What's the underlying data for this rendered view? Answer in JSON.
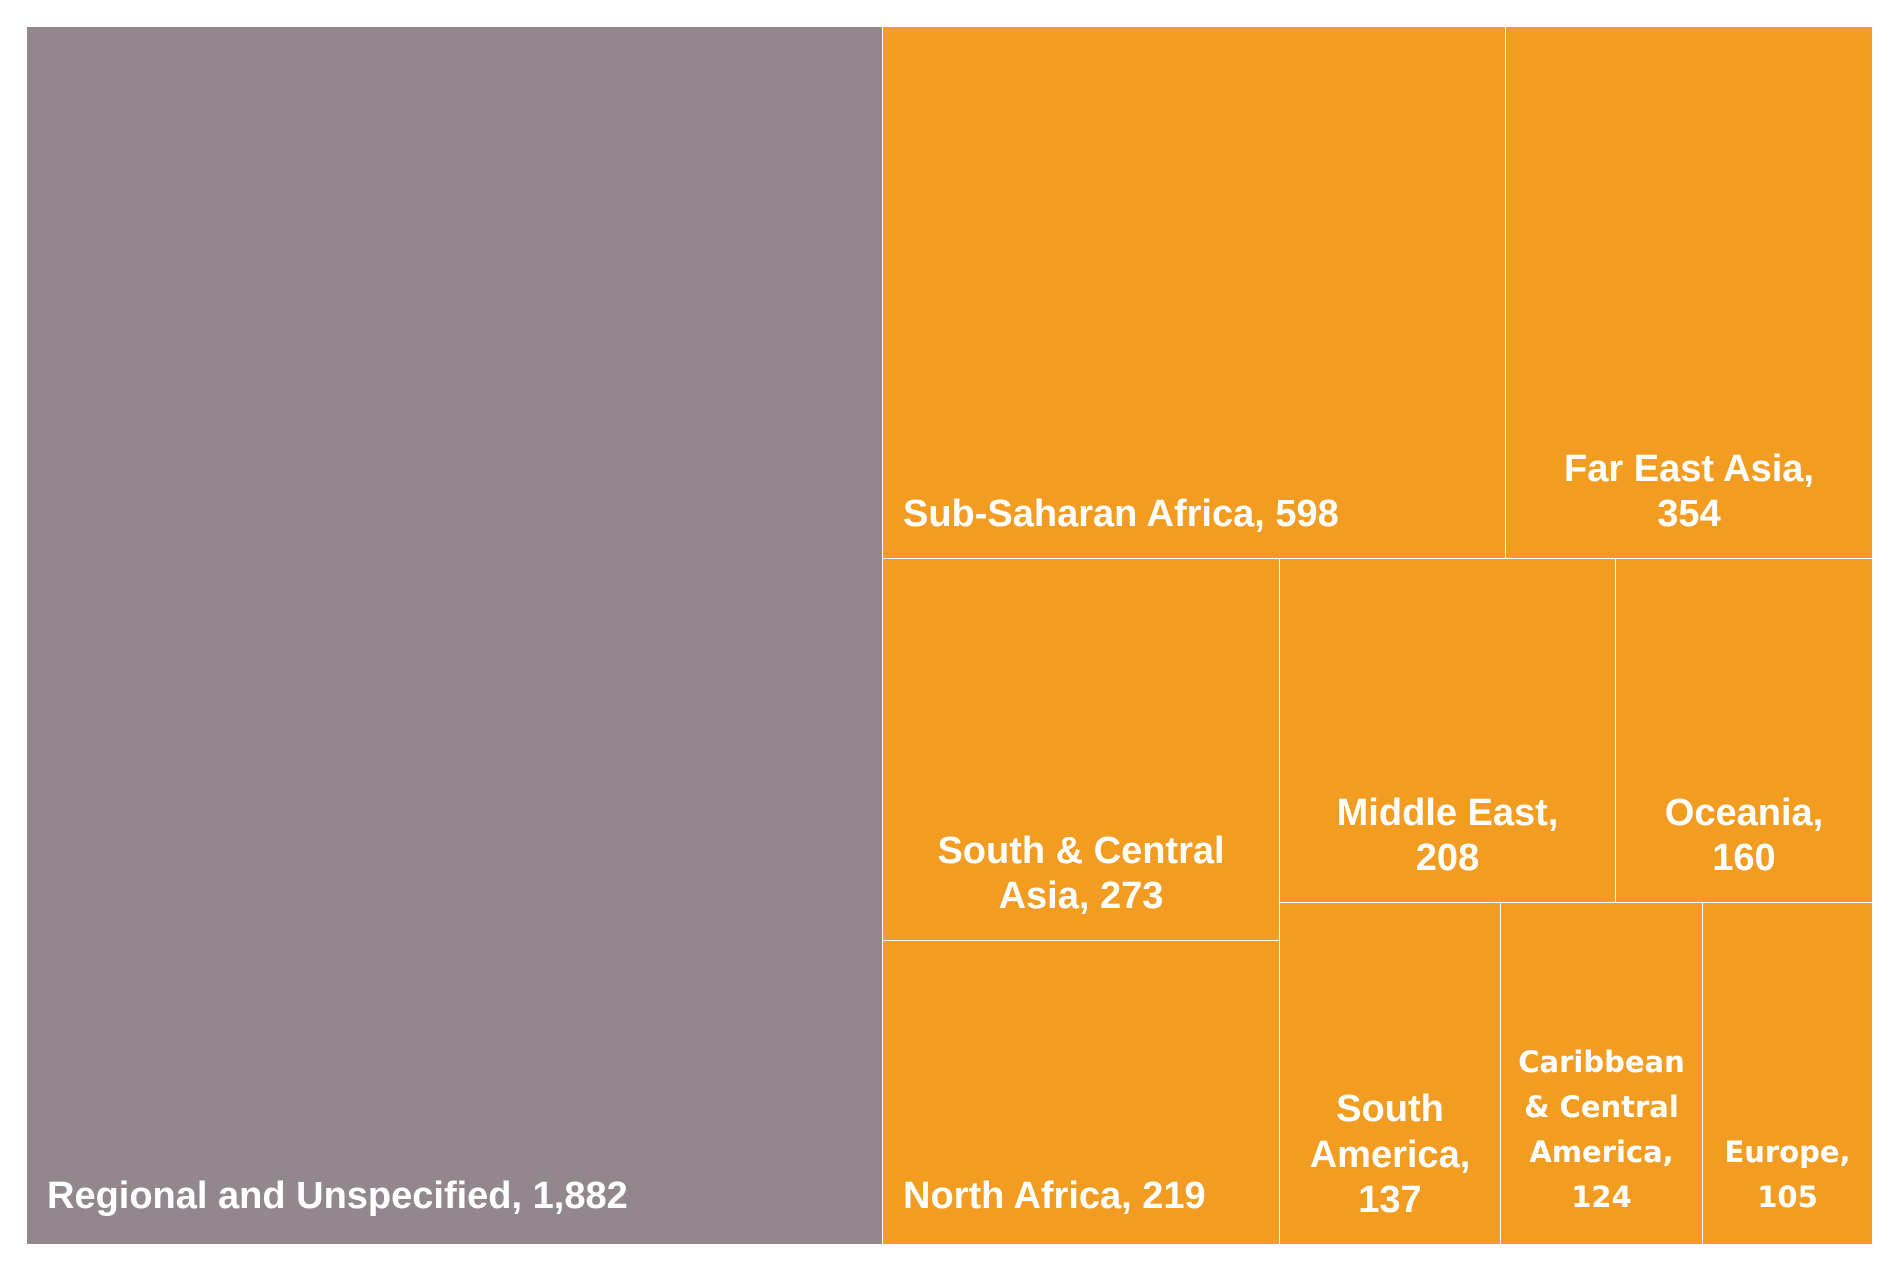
{
  "chart_data": {
    "type": "treemap",
    "colors": {
      "regional": "#93878e",
      "region": "#f39c22",
      "border": "#ffffff"
    },
    "items": [
      {
        "name": "Regional and Unspecified",
        "value": 1882,
        "label_lines": [
          "Regional and Unspecified, 1,882"
        ],
        "color": "#93878e"
      },
      {
        "name": "Sub-Saharan Africa",
        "value": 598,
        "label_lines": [
          "Sub-Saharan Africa, 598"
        ],
        "color": "#f39c22"
      },
      {
        "name": "Far East Asia",
        "value": 354,
        "label_lines": [
          "Far East Asia,",
          "354"
        ],
        "color": "#f39c22"
      },
      {
        "name": "South & Central Asia",
        "value": 273,
        "label_lines": [
          "South & Central",
          "Asia, 273"
        ],
        "color": "#f39c22"
      },
      {
        "name": "North Africa",
        "value": 219,
        "label_lines": [
          "North Africa, 219"
        ],
        "color": "#f39c22"
      },
      {
        "name": "Middle East",
        "value": 208,
        "label_lines": [
          "Middle East,",
          "208"
        ],
        "color": "#f39c22"
      },
      {
        "name": "Oceania",
        "value": 160,
        "label_lines": [
          "Oceania,",
          "160"
        ],
        "color": "#f39c22"
      },
      {
        "name": "South America",
        "value": 137,
        "label_lines": [
          "South",
          "America,",
          "137"
        ],
        "color": "#f39c22"
      },
      {
        "name": "Caribbean & Central America",
        "value": 124,
        "label_lines": [
          "Caribbean",
          "& Central",
          "America,",
          "124"
        ],
        "color": "#f39c22"
      },
      {
        "name": "Europe",
        "value": 105,
        "label_lines": [
          "Europe,",
          "105"
        ],
        "color": "#f39c22"
      }
    ]
  }
}
